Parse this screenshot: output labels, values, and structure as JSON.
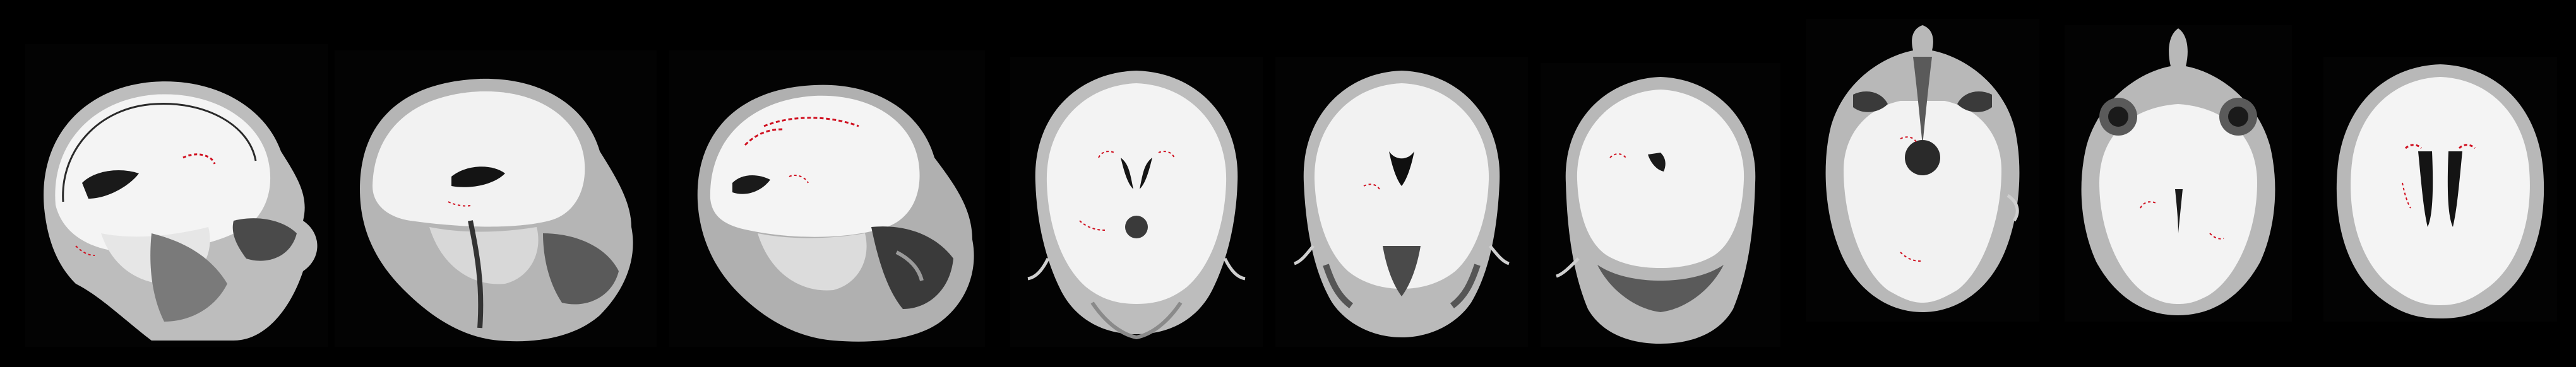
{
  "figure": {
    "background_color": "#000000",
    "tissue_color": "#f2f2f2",
    "highlight_color": "#e0101a",
    "panel_count": 9
  },
  "panels": [
    {
      "view": "sagittal"
    },
    {
      "view": "sagittal"
    },
    {
      "view": "sagittal"
    },
    {
      "view": "coronal"
    },
    {
      "view": "coronal"
    },
    {
      "view": "coronal"
    },
    {
      "view": "axial"
    },
    {
      "view": "axial"
    },
    {
      "view": "axial"
    }
  ]
}
